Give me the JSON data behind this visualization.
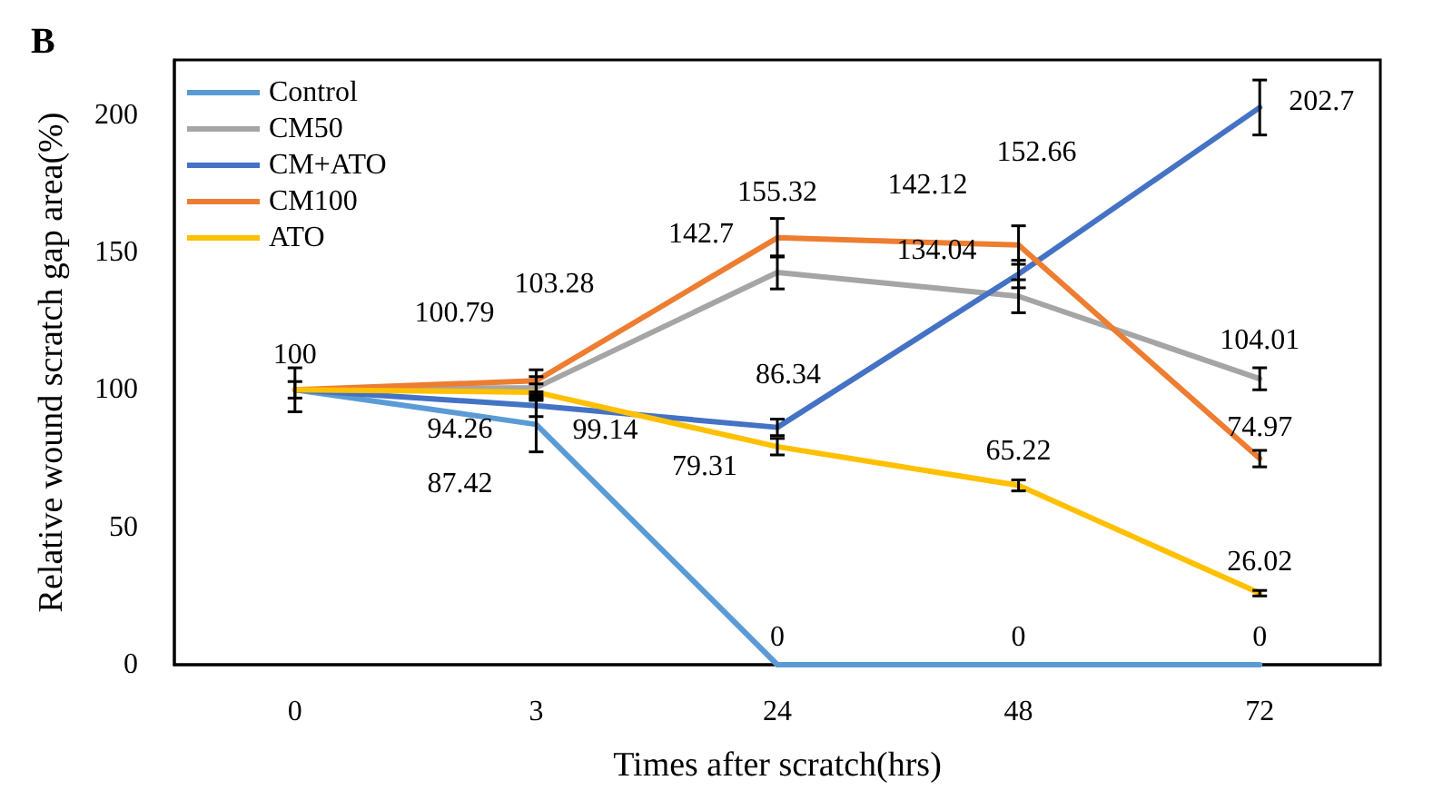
{
  "chart_data": {
    "type": "line",
    "title": "B",
    "xlabel": "Times after scratch(hrs)",
    "ylabel": "Relative wound scratch gap area(%)",
    "categories": [
      "0",
      "3",
      "24",
      "48",
      "72"
    ],
    "ylim": [
      0,
      220
    ],
    "yticks": [
      0,
      50,
      100,
      150,
      200
    ],
    "grid": false,
    "legend": "top left",
    "marker": "none",
    "line_style": "solid",
    "series": [
      {
        "name": "Control",
        "color": "#5b9bd5",
        "values": [
          100,
          87.42,
          0,
          0,
          0
        ],
        "value_labels": [
          "100",
          "87.42",
          "0",
          "0",
          "0"
        ],
        "errors": [
          8,
          10,
          null,
          null,
          null
        ]
      },
      {
        "name": "CM50",
        "color": "#a5a5a5",
        "values": [
          100,
          100.79,
          142.7,
          134.04,
          104.01
        ],
        "value_labels": [
          null,
          "100.79",
          "142.7",
          "134.04",
          "104.01"
        ],
        "errors": [
          null,
          4,
          6,
          6,
          4
        ]
      },
      {
        "name": "CM+ATO",
        "color": "#4472c4",
        "values": [
          100,
          94.26,
          86.34,
          142.12,
          202.7
        ],
        "value_labels": [
          null,
          "94.26",
          "86.34",
          "142.12",
          "202.7"
        ],
        "errors": [
          3,
          4,
          3,
          5,
          10
        ]
      },
      {
        "name": "CM100",
        "color": "#ed7d31",
        "values": [
          100,
          103.28,
          155.32,
          152.66,
          74.97
        ],
        "value_labels": [
          null,
          "103.28",
          "155.32",
          "152.66",
          "74.97"
        ],
        "errors": [
          null,
          4,
          7,
          7,
          3
        ]
      },
      {
        "name": "ATO",
        "color": "#ffc000",
        "values": [
          100,
          99.14,
          79.31,
          65.22,
          26.02
        ],
        "value_labels": [
          null,
          "99.14",
          "79.31",
          "65.22",
          "26.02"
        ],
        "errors": [
          null,
          3,
          3,
          2,
          1
        ]
      }
    ]
  }
}
